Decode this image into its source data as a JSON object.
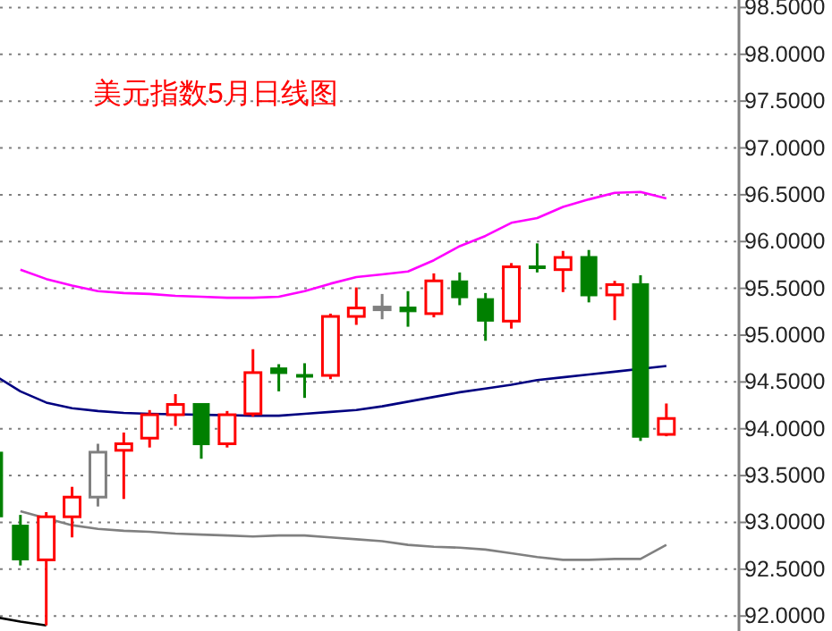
{
  "chart_data": {
    "type": "candlestick",
    "title": "美元指数5月日线图",
    "categories": [
      null,
      null,
      null,
      null,
      null,
      null,
      null,
      null,
      null,
      null,
      null,
      null,
      null,
      null,
      null,
      null,
      null,
      null,
      null,
      null,
      null,
      null,
      null,
      null,
      null,
      null,
      null
    ],
    "ohlc": [
      [
        93.75,
        93.75,
        93.06,
        93.06
      ],
      [
        92.97,
        93.08,
        92.54,
        92.6
      ],
      [
        92.6,
        93.11,
        91.9,
        93.06
      ],
      [
        93.06,
        93.38,
        92.84,
        93.27
      ],
      [
        93.27,
        93.84,
        93.17,
        93.75
      ],
      [
        93.77,
        93.96,
        93.25,
        93.84
      ],
      [
        93.9,
        94.2,
        93.8,
        94.15
      ],
      [
        94.15,
        94.37,
        94.03,
        94.26
      ],
      [
        94.27,
        94.27,
        93.68,
        93.83
      ],
      [
        93.84,
        94.19,
        93.8,
        94.15
      ],
      [
        94.16,
        94.85,
        94.13,
        94.6
      ],
      [
        94.65,
        94.69,
        94.4,
        94.59
      ],
      [
        94.58,
        94.7,
        94.33,
        94.57
      ],
      [
        94.57,
        95.23,
        94.53,
        95.2
      ],
      [
        95.2,
        95.51,
        95.11,
        95.29
      ],
      [
        95.3,
        95.44,
        95.17,
        95.3
      ],
      [
        95.3,
        95.47,
        95.09,
        95.25
      ],
      [
        95.23,
        95.66,
        95.19,
        95.58
      ],
      [
        95.58,
        95.67,
        95.32,
        95.4
      ],
      [
        95.39,
        95.45,
        94.94,
        95.15
      ],
      [
        95.15,
        95.77,
        95.07,
        95.73
      ],
      [
        95.74,
        95.98,
        95.67,
        95.73
      ],
      [
        95.7,
        95.9,
        95.46,
        95.83
      ],
      [
        95.84,
        95.91,
        95.35,
        95.42
      ],
      [
        95.43,
        95.58,
        95.16,
        95.54
      ],
      [
        95.55,
        95.64,
        93.87,
        93.91
      ],
      [
        93.94,
        94.27,
        93.92,
        94.11
      ]
    ],
    "colors": [
      "#008000",
      "#008000",
      "#ff0000",
      "#ff0000",
      "#808080",
      "#ff0000",
      "#ff0000",
      "#ff0000",
      "#008000",
      "#ff0000",
      "#ff0000",
      "#008000",
      "#008000",
      "#ff0000",
      "#ff0000",
      "#808080",
      "#008000",
      "#ff0000",
      "#008000",
      "#008000",
      "#ff0000",
      "#008000",
      "#ff0000",
      "#008000",
      "#ff0000",
      "#008000",
      "#ff0000"
    ],
    "series": [
      {
        "type": "line",
        "color": "#ff00ff",
        "values": [
          null,
          95.7,
          95.6,
          95.53,
          95.47,
          95.45,
          95.44,
          95.42,
          95.41,
          95.4,
          95.4,
          95.41,
          95.47,
          95.55,
          95.62,
          95.65,
          95.68,
          95.8,
          95.95,
          96.06,
          96.2,
          96.25,
          96.37,
          96.45,
          96.52,
          96.53,
          96.46
        ]
      },
      {
        "type": "line",
        "color": "#000080",
        "values": [
          94.57,
          94.4,
          94.28,
          94.22,
          94.19,
          94.17,
          94.16,
          null,
          null,
          null,
          94.14,
          94.14,
          94.16,
          94.18,
          94.2,
          94.24,
          94.29,
          94.34,
          94.39,
          94.43,
          94.47,
          94.52,
          94.55,
          94.58,
          94.61,
          null,
          94.67
        ]
      },
      {
        "type": "line",
        "color": "#808080",
        "values": [
          null,
          93.12,
          null,
          92.97,
          92.93,
          92.91,
          92.9,
          92.88,
          92.87,
          92.86,
          92.85,
          92.86,
          92.86,
          92.84,
          92.82,
          92.8,
          92.76,
          92.74,
          92.73,
          92.71,
          92.67,
          92.63,
          92.6,
          92.6,
          92.61,
          92.61,
          92.76
        ]
      },
      {
        "type": "line",
        "color": "#000000",
        "values": [
          91.99,
          91.94,
          91.9,
          null,
          null,
          null,
          null,
          null,
          null,
          null,
          null,
          null,
          null,
          null,
          null,
          null,
          null,
          null,
          null,
          null,
          null,
          null,
          null,
          null,
          null,
          null,
          null
        ]
      }
    ],
    "ylim": [
      91.84,
      98.58
    ],
    "yticks": [
      {
        "value": 92,
        "label": "92.0000"
      },
      {
        "value": 92.5,
        "label": "92.5000"
      },
      {
        "value": 93,
        "label": "93.0000"
      },
      {
        "value": 93.5,
        "label": "93.5000"
      },
      {
        "value": 94,
        "label": "94.0000"
      },
      {
        "value": 94.5,
        "label": "94.5000"
      },
      {
        "value": 95,
        "label": "95.0000"
      },
      {
        "value": 95.5,
        "label": "95.5000"
      },
      {
        "value": 96,
        "label": "96.0000"
      },
      {
        "value": 96.5,
        "label": "96.5000"
      },
      {
        "value": 97,
        "label": "97.0000"
      },
      {
        "value": 97.5,
        "label": "97.5000"
      },
      {
        "value": 98,
        "label": "98.0000"
      },
      {
        "value": 98.5,
        "label": "98.5000"
      }
    ],
    "grid": "y",
    "tick_labels": "y"
  }
}
